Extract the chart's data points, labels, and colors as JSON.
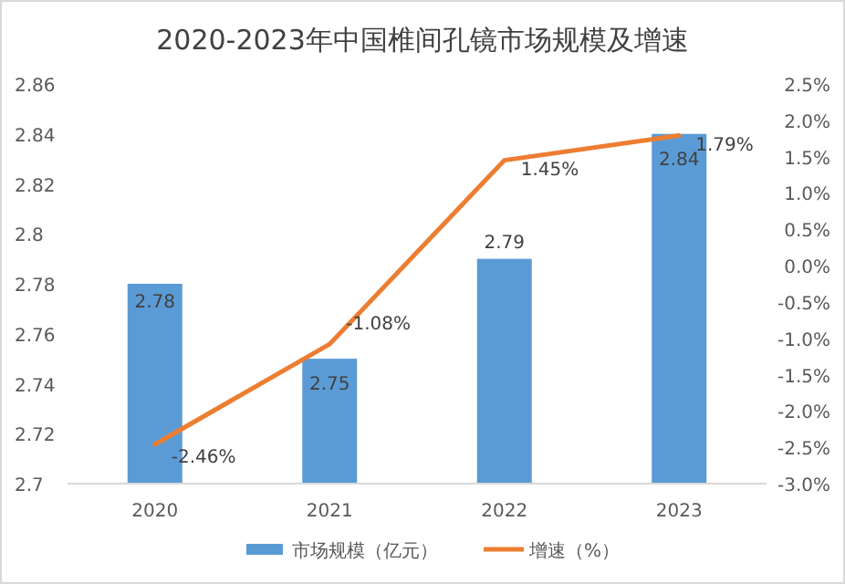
{
  "chart_data": {
    "type": "bar",
    "title": "2020-2023年中国椎间孔镜市场规模及增速",
    "categories": [
      "2020",
      "2021",
      "2022",
      "2023"
    ],
    "series": [
      {
        "name": "市场规模（亿元）",
        "color": "#5b9bd5",
        "values": [
          2.78,
          2.75,
          2.79,
          2.84
        ],
        "value_labels": [
          "2.78",
          "2.75",
          "2.79",
          "2.84"
        ]
      },
      {
        "name": "增速（%）",
        "type": "line",
        "axis": "y2",
        "color": "#ed7d31",
        "values": [
          -2.46,
          -1.08,
          1.45,
          1.79
        ],
        "value_labels": [
          "-2.46%",
          "-1.08%",
          "1.45%",
          "1.79%"
        ]
      }
    ],
    "ylim": [
      2.7,
      2.86
    ],
    "yticks": [
      2.7,
      2.72,
      2.74,
      2.76,
      2.78,
      2.8,
      2.82,
      2.84,
      2.86
    ],
    "y2lim": [
      -3.0,
      2.5
    ],
    "y2ticks": [
      {
        "value": -3.0,
        "label": "-3.0%"
      },
      {
        "value": -2.5,
        "label": "-2.5%"
      },
      {
        "value": -2.0,
        "label": "-2.0%"
      },
      {
        "value": -1.5,
        "label": "-1.5%"
      },
      {
        "value": -1.0,
        "label": "-1.0%"
      },
      {
        "value": -0.5,
        "label": "-0.5%"
      },
      {
        "value": 0.0,
        "label": "0.0%"
      },
      {
        "value": 0.5,
        "label": "0.5%"
      },
      {
        "value": 1.0,
        "label": "1.0%"
      },
      {
        "value": 1.5,
        "label": "1.5%"
      },
      {
        "value": 2.0,
        "label": "2.0%"
      },
      {
        "value": 2.5,
        "label": "2.5%"
      }
    ],
    "legend": "bottom",
    "marker": "none",
    "line_style": "solid"
  }
}
